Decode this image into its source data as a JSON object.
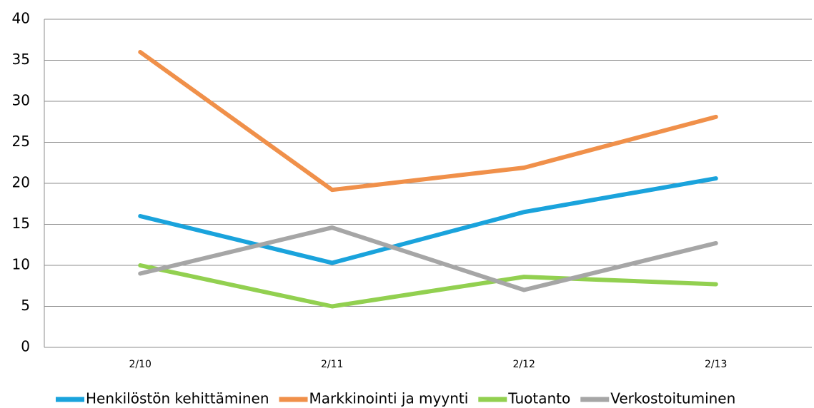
{
  "chart_data": {
    "type": "line",
    "categories": [
      "2/10",
      "2/11",
      "2/12",
      "2/13"
    ],
    "series": [
      {
        "name": "Henkilöstön kehittäminen",
        "color": "#1aa3dc",
        "values": [
          16,
          10.3,
          16.5,
          20.6
        ]
      },
      {
        "name": "Markkinointi ja myynti",
        "color": "#f0904a",
        "values": [
          36,
          19.2,
          21.9,
          28.1
        ]
      },
      {
        "name": "Tuotanto",
        "color": "#92d050",
        "values": [
          10,
          5,
          8.6,
          7.7
        ]
      },
      {
        "name": "Verkostoituminen",
        "color": "#a6a6a6",
        "values": [
          9,
          14.6,
          7,
          12.7
        ]
      }
    ],
    "ylim": [
      0,
      40
    ],
    "yticks": [
      0,
      5,
      10,
      15,
      20,
      25,
      30,
      35,
      40
    ],
    "grid": true,
    "legend": "bottom"
  }
}
